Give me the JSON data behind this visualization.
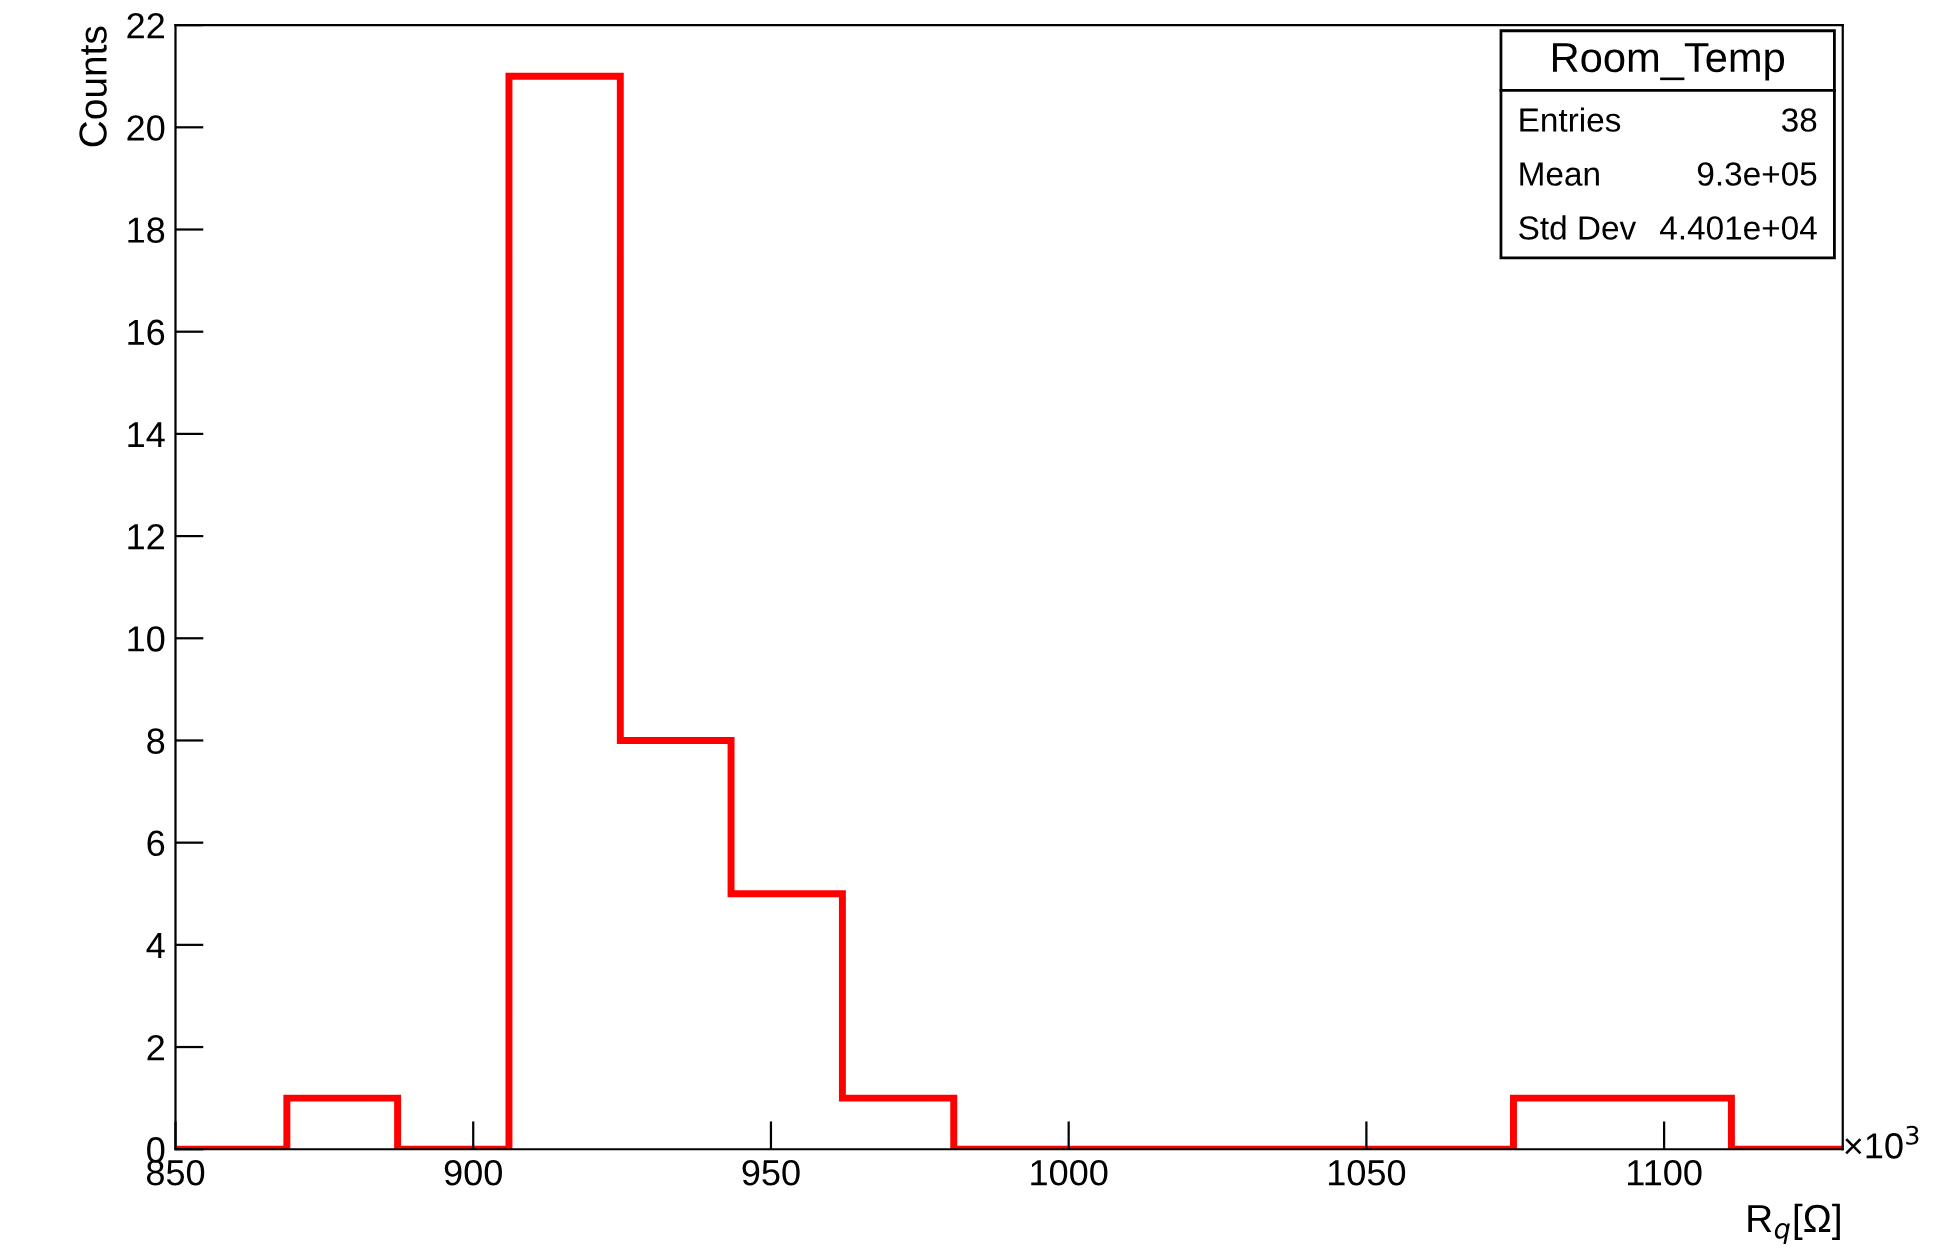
{
  "chart_data": {
    "type": "histogram",
    "xlabel": "R$_{q}$[Ω]",
    "ylabel": "Counts",
    "bins": [
      850,
      868.7,
      887.3,
      906,
      924.7,
      943.3,
      962,
      980.7,
      999.3,
      1018,
      1036.7,
      1055.3,
      1074.7,
      1092.7,
      1111.3,
      1130
    ],
    "values": [
      0,
      1,
      0,
      21,
      8,
      5,
      1,
      0,
      0,
      0,
      0,
      0,
      1,
      1,
      0
    ],
    "color": "#ff0000",
    "xlim": [
      850,
      1130
    ],
    "xticks": [
      850,
      900,
      950,
      1000,
      1050,
      1100
    ],
    "ylim": [
      0,
      22
    ],
    "yticks": [
      0,
      2,
      4,
      6,
      8,
      10,
      12,
      14,
      16,
      18,
      20,
      22
    ],
    "grid": false,
    "legend": false,
    "annotations": [
      "Room_Temp",
      "Entries",
      "38",
      "Mean",
      "9.3e+05",
      "Std Dev",
      "4.401e+04",
      "×10$^{3}$"
    ]
  }
}
